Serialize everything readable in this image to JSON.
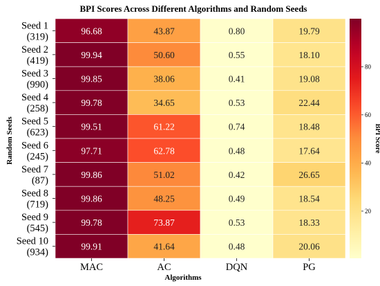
{
  "chart_data": {
    "type": "heatmap",
    "title": "BPI Scores Across Different Algorithms and Random Seeds",
    "xlabel": "Algorithms",
    "ylabel": "Random Seeds",
    "columns": [
      "MAC",
      "AC",
      "DQN",
      "PG"
    ],
    "rows": [
      {
        "name": "Seed 1",
        "seed": "(319)"
      },
      {
        "name": "Seed 2",
        "seed": "(419)"
      },
      {
        "name": "Seed 3",
        "seed": "(990)"
      },
      {
        "name": "Seed 4",
        "seed": "(258)"
      },
      {
        "name": "Seed 5",
        "seed": "(623)"
      },
      {
        "name": "Seed 6",
        "seed": "(245)"
      },
      {
        "name": "Seed 7",
        "seed": "(87)"
      },
      {
        "name": "Seed 8",
        "seed": "(719)"
      },
      {
        "name": "Seed 9",
        "seed": "(545)"
      },
      {
        "name": "Seed 10",
        "seed": "(934)"
      }
    ],
    "values": [
      [
        96.68,
        43.87,
        0.8,
        19.79
      ],
      [
        99.94,
        50.6,
        0.55,
        18.1
      ],
      [
        99.85,
        38.06,
        0.41,
        19.08
      ],
      [
        99.78,
        34.65,
        0.53,
        22.44
      ],
      [
        99.51,
        61.22,
        0.74,
        18.48
      ],
      [
        97.71,
        62.78,
        0.48,
        17.64
      ],
      [
        99.86,
        51.02,
        0.42,
        26.65
      ],
      [
        99.86,
        48.25,
        0.49,
        18.54
      ],
      [
        99.78,
        73.87,
        0.53,
        18.33
      ],
      [
        99.91,
        41.64,
        0.48,
        20.06
      ]
    ],
    "colorbar": {
      "label": "BPI Score",
      "ticks": [
        20,
        40,
        60,
        80
      ],
      "range": [
        0.41,
        99.94
      ],
      "colormap": "YlOrRd"
    }
  }
}
